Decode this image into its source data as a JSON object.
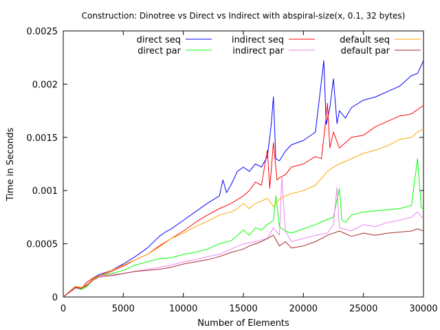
{
  "chart_data": {
    "type": "line",
    "title": "Construction: Dinotree vs Direct vs Indirect with abspiral-size(x, 0.1, 32 bytes)",
    "xlabel": "Number of Elements",
    "ylabel": "Time in Seconds",
    "xlim": [
      0,
      30000
    ],
    "ylim": [
      0,
      0.0025
    ],
    "x_ticks": [
      0,
      5000,
      10000,
      15000,
      20000,
      25000,
      30000
    ],
    "y_ticks": [
      0,
      0.0005,
      0.001,
      0.0015,
      0.002,
      0.0025
    ],
    "x_tick_labels": [
      "0",
      "5000",
      "10000",
      "15000",
      "20000",
      "25000",
      "30000"
    ],
    "y_tick_labels": [
      "0",
      "0.0005",
      "0.001",
      "0.0015",
      "0.002",
      "0.0025"
    ],
    "grid": false,
    "legend_position": "top",
    "series": [
      {
        "name": "direct seq",
        "color": "#0000ff",
        "x": [
          0,
          1000,
          1500,
          2000,
          2500,
          3000,
          4000,
          5000,
          6000,
          7000,
          8000,
          8500,
          9000,
          10000,
          11000,
          12000,
          13000,
          13300,
          13600,
          14000,
          14500,
          15000,
          15500,
          16000,
          16500,
          17000,
          17300,
          17500,
          17700,
          18000,
          18500,
          19000,
          20000,
          21000,
          21700,
          21900,
          22200,
          22500,
          22800,
          23000,
          23500,
          24000,
          25000,
          26000,
          27000,
          28000,
          29000,
          29500,
          30000
        ],
        "values": [
          0,
          9e-05,
          8e-05,
          0.00014,
          0.00018,
          0.00021,
          0.00025,
          0.00031,
          0.00038,
          0.00046,
          0.00057,
          0.00061,
          0.00064,
          0.00072,
          0.0008,
          0.00088,
          0.00095,
          0.0011,
          0.00098,
          0.00106,
          0.00118,
          0.00122,
          0.00118,
          0.00125,
          0.00122,
          0.00132,
          0.0016,
          0.00188,
          0.0013,
          0.00128,
          0.00137,
          0.00143,
          0.00147,
          0.00155,
          0.00222,
          0.00162,
          0.00178,
          0.00205,
          0.00163,
          0.00175,
          0.00168,
          0.00178,
          0.00185,
          0.00188,
          0.00193,
          0.00198,
          0.00208,
          0.0021,
          0.00222
        ]
      },
      {
        "name": "direct par",
        "color": "#00ff00",
        "x": [
          0,
          1000,
          1500,
          2000,
          2500,
          3000,
          4000,
          5000,
          6000,
          7000,
          8000,
          9000,
          10000,
          11000,
          12000,
          13000,
          14000,
          14500,
          15000,
          15500,
          16000,
          16500,
          17000,
          17500,
          17700,
          18000,
          18500,
          19000,
          20000,
          21000,
          22000,
          22500,
          23000,
          23200,
          23500,
          24000,
          25000,
          26000,
          27000,
          28000,
          29000,
          29500,
          29800,
          30000
        ],
        "values": [
          0,
          9e-05,
          7e-05,
          0.0001,
          0.00018,
          0.0002,
          0.00022,
          0.00025,
          0.0003,
          0.00033,
          0.00036,
          0.00037,
          0.0004,
          0.00042,
          0.00045,
          0.0005,
          0.00053,
          0.00058,
          0.00063,
          0.00058,
          0.00065,
          0.00063,
          0.00068,
          0.00072,
          0.00095,
          0.00066,
          0.00062,
          0.0006,
          0.00064,
          0.00068,
          0.00073,
          0.00075,
          0.00102,
          0.00072,
          0.0007,
          0.00077,
          0.0008,
          0.00081,
          0.00082,
          0.00083,
          0.00086,
          0.0013,
          0.00085,
          0.00082
        ]
      },
      {
        "name": "indirect seq",
        "color": "#ff0000",
        "x": [
          0,
          1000,
          1500,
          2000,
          2500,
          3000,
          4000,
          5000,
          6000,
          7000,
          8000,
          9000,
          10000,
          11000,
          12000,
          13000,
          14000,
          15000,
          15500,
          16000,
          16500,
          17000,
          17200,
          17500,
          17800,
          18000,
          18500,
          19000,
          20000,
          21000,
          21500,
          21800,
          22000,
          22200,
          22500,
          23000,
          23500,
          24000,
          25000,
          26000,
          27000,
          28000,
          29000,
          30000
        ],
        "values": [
          0,
          0.0001,
          8e-05,
          0.00014,
          0.00018,
          0.0002,
          0.00024,
          0.00029,
          0.00035,
          0.0004,
          0.00048,
          0.00055,
          0.00062,
          0.0007,
          0.00077,
          0.00083,
          0.00088,
          0.00095,
          0.001,
          0.00108,
          0.00105,
          0.00138,
          0.00102,
          0.00145,
          0.0011,
          0.00112,
          0.00115,
          0.00122,
          0.00125,
          0.00132,
          0.0013,
          0.0016,
          0.00182,
          0.0014,
          0.00155,
          0.0014,
          0.00145,
          0.0015,
          0.00152,
          0.0016,
          0.00165,
          0.0017,
          0.00172,
          0.0018
        ]
      },
      {
        "name": "indirect par",
        "color": "#ee82ee",
        "x": [
          0,
          1000,
          1500,
          2000,
          2500,
          3000,
          4000,
          5000,
          6000,
          7000,
          8000,
          9000,
          10000,
          11000,
          12000,
          13000,
          14000,
          15000,
          16000,
          17000,
          17500,
          18000,
          18200,
          18500,
          19000,
          20000,
          21000,
          22000,
          22500,
          22800,
          23000,
          24000,
          25000,
          26000,
          27000,
          28000,
          29000,
          29500,
          30000
        ],
        "values": [
          0,
          8e-05,
          8e-05,
          0.00012,
          0.00016,
          0.0002,
          0.00021,
          0.00022,
          0.00024,
          0.00026,
          0.00028,
          0.0003,
          0.00033,
          0.00035,
          0.00038,
          0.0004,
          0.00045,
          0.0005,
          0.00052,
          0.00055,
          0.00065,
          0.00058,
          0.00113,
          0.00062,
          0.00052,
          0.00055,
          0.00058,
          0.0006,
          0.00068,
          0.00103,
          0.00065,
          0.00062,
          0.00068,
          0.00066,
          0.0007,
          0.00072,
          0.00075,
          0.0008,
          0.00073
        ]
      },
      {
        "name": "default seq",
        "color": "#ffa500",
        "x": [
          0,
          1000,
          1500,
          2000,
          2500,
          3000,
          4000,
          5000,
          6000,
          7000,
          8000,
          9000,
          10000,
          11000,
          12000,
          13000,
          14000,
          14500,
          15000,
          15500,
          16000,
          16500,
          17000,
          17500,
          18000,
          18500,
          19000,
          20000,
          21000,
          22000,
          22500,
          23000,
          24000,
          25000,
          26000,
          27000,
          28000,
          29000,
          29500,
          30000
        ],
        "values": [
          0,
          0.0001,
          9e-05,
          0.00012,
          0.00017,
          0.0002,
          0.00025,
          0.0003,
          0.00035,
          0.0004,
          0.00047,
          0.00055,
          0.0006,
          0.00066,
          0.00071,
          0.00077,
          0.0008,
          0.00083,
          0.00088,
          0.00083,
          0.00088,
          0.0009,
          0.00093,
          0.00085,
          0.00092,
          0.00095,
          0.00097,
          0.001,
          0.00105,
          0.00118,
          0.00122,
          0.00125,
          0.0013,
          0.00135,
          0.00138,
          0.00142,
          0.00148,
          0.0015,
          0.00155,
          0.00158
        ]
      },
      {
        "name": "default par",
        "color": "#a52a2a",
        "x": [
          0,
          1000,
          1500,
          2000,
          2500,
          3000,
          4000,
          5000,
          6000,
          7000,
          8000,
          9000,
          10000,
          11000,
          12000,
          13000,
          14000,
          15000,
          15500,
          16000,
          16500,
          17000,
          17500,
          18000,
          18500,
          19000,
          20000,
          21000,
          22000,
          23000,
          24000,
          25000,
          26000,
          27000,
          28000,
          29000,
          29500,
          30000
        ],
        "values": [
          0,
          9e-05,
          8e-05,
          0.00011,
          0.00016,
          0.00019,
          0.0002,
          0.00022,
          0.00024,
          0.00025,
          0.00026,
          0.00028,
          0.00031,
          0.00033,
          0.00035,
          0.00038,
          0.00042,
          0.00045,
          0.00048,
          0.0005,
          0.00052,
          0.00055,
          0.00058,
          0.00048,
          0.00052,
          0.00046,
          0.00048,
          0.00052,
          0.00058,
          0.00062,
          0.00057,
          0.0006,
          0.00058,
          0.0006,
          0.00061,
          0.00062,
          0.00064,
          0.00062
        ]
      }
    ]
  }
}
